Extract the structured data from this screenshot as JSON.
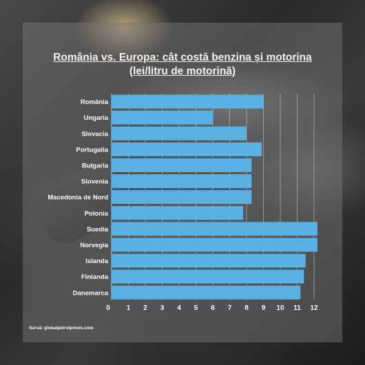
{
  "chart_data": {
    "type": "bar",
    "orientation": "horizontal",
    "title": "România vs. Europa: cât costă benzina și motorina",
    "subtitle": "(lei/litru de motorină)",
    "categories": [
      "România",
      "Ungaria",
      "Slovacia",
      "Portugalia",
      "Bulgaria",
      "Slovenia",
      "Macedonia de Nord",
      "Polonia",
      "Suedia",
      "Norvegia",
      "Islanda",
      "Finlanda",
      "Danemarca"
    ],
    "values": [
      9.0,
      6.0,
      8.0,
      8.9,
      8.3,
      8.3,
      8.3,
      7.8,
      12.2,
      12.2,
      11.5,
      11.4,
      11.2
    ],
    "xlim": [
      0,
      12
    ],
    "x_ticks": [
      "0",
      "1",
      "2",
      "3",
      "4",
      "5",
      "6",
      "7",
      "8",
      "9",
      "10",
      "11",
      "12"
    ],
    "grid": true,
    "bar_color": "#5ab1e4"
  },
  "source": "Sursă: globalpetrolprices.com"
}
